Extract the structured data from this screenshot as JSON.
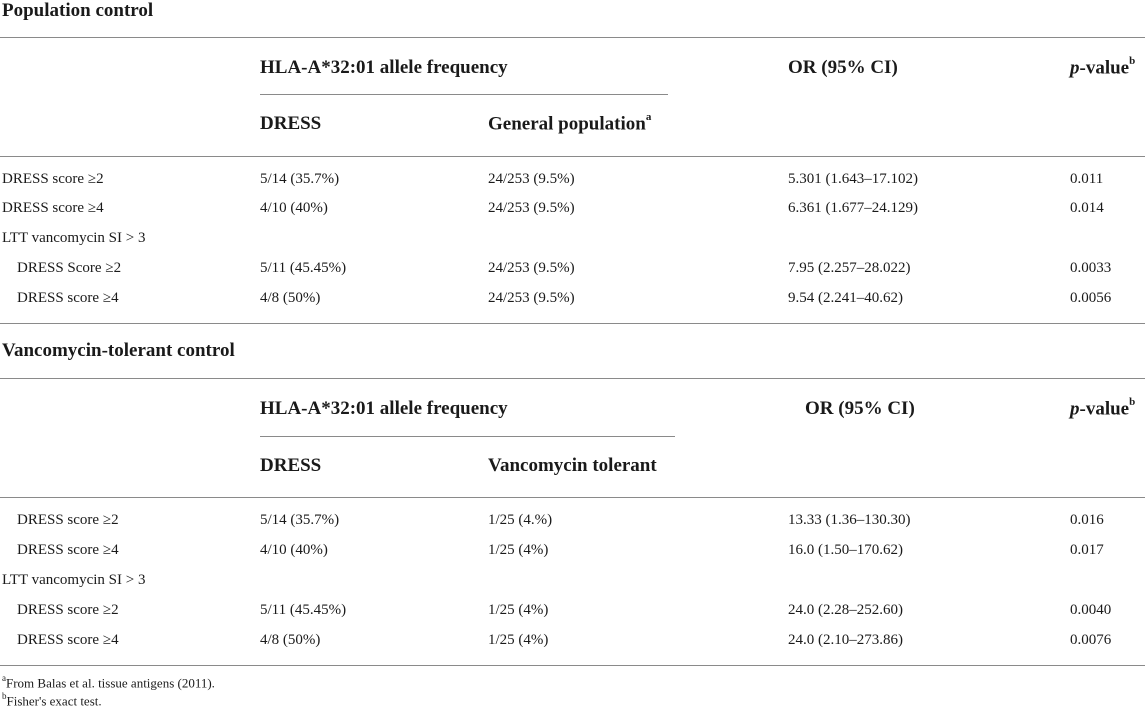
{
  "table1": {
    "title": "Population control",
    "header": {
      "group": "HLA-A*32:01 allele frequency",
      "or": "OR (95% CI)",
      "pvalue_italic": "p",
      "pvalue_rest": "-value",
      "pvalue_sup": "b",
      "sub_col1": "DRESS",
      "sub_col2": "General population",
      "sub_col2_sup": "a"
    },
    "rows": [
      {
        "label": "DRESS score ≥2",
        "dress": "5/14 (35.7%)",
        "control": "24/253 (9.5%)",
        "or": "5.301 (1.643–17.102)",
        "p": "0.011"
      },
      {
        "label": "DRESS score ≥4",
        "dress": "4/10 (40%)",
        "control": "24/253 (9.5%)",
        "or": "6.361 (1.677–24.129)",
        "p": "0.014"
      },
      {
        "label": "LTT vancomycin SI > 3",
        "dress": "",
        "control": "",
        "or": "",
        "p": ""
      },
      {
        "label": "DRESS Score ≥2",
        "dress": "5/11 (45.45%)",
        "control": "24/253 (9.5%)",
        "or": "7.95 (2.257–28.022)",
        "p": "0.0033"
      },
      {
        "label": "DRESS score ≥4",
        "dress": "4/8 (50%)",
        "control": "24/253 (9.5%)",
        "or": "9.54 (2.241–40.62)",
        "p": "0.0056"
      }
    ]
  },
  "table2": {
    "title": "Vancomycin-tolerant control",
    "header": {
      "group": "HLA-A*32:01 allele frequency",
      "or": "OR (95% CI)",
      "pvalue_italic": "p",
      "pvalue_rest": "-value",
      "pvalue_sup": "b",
      "sub_col1": "DRESS",
      "sub_col2": "Vancomycin tolerant"
    },
    "rows": [
      {
        "label": "DRESS score ≥2",
        "dress": "5/14 (35.7%)",
        "control": "1/25 (4.%)",
        "or": "13.33 (1.36–130.30)",
        "p": "0.016"
      },
      {
        "label": "DRESS score ≥4",
        "dress": "4/10 (40%)",
        "control": "1/25 (4%)",
        "or": "16.0 (1.50–170.62)",
        "p": "0.017"
      },
      {
        "label": "LTT vancomycin SI > 3",
        "dress": "",
        "control": "",
        "or": "",
        "p": ""
      },
      {
        "label": "DRESS score ≥2",
        "dress": "5/11 (45.45%)",
        "control": "1/25 (4%)",
        "or": "24.0 (2.28–252.60)",
        "p": "0.0040"
      },
      {
        "label": "DRESS score ≥4",
        "dress": "4/8 (50%)",
        "control": "1/25 (4%)",
        "or": "24.0 (2.10–273.86)",
        "p": "0.0076"
      }
    ]
  },
  "footnotes": [
    {
      "mark": "a",
      "text": "From Balas et al. tissue antigens (2011)."
    },
    {
      "mark": "b",
      "text": "Fisher's exact test."
    }
  ]
}
